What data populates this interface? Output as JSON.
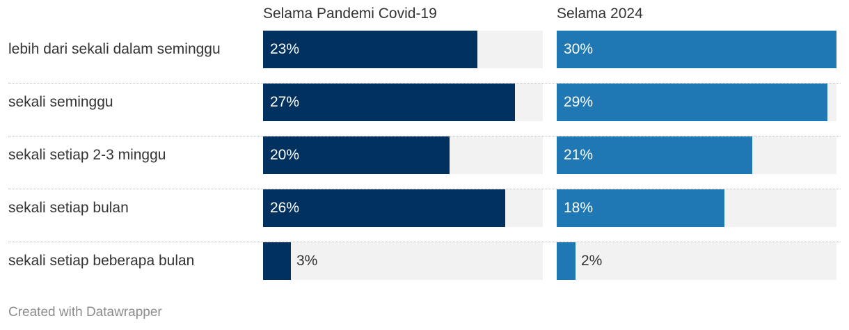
{
  "chart_data": {
    "type": "bar",
    "orientation": "horizontal",
    "categories": [
      "lebih dari sekali dalam seminggu",
      "sekali seminggu",
      "sekali setiap 2-3 minggu",
      "sekali setiap bulan",
      "sekali setiap beberapa bulan"
    ],
    "series": [
      {
        "name": "Selama Pandemi Covid-19",
        "values": [
          23,
          27,
          20,
          26,
          3
        ],
        "labels": [
          "23%",
          "27%",
          "20%",
          "26%",
          "3%"
        ],
        "color": "#01325f"
      },
      {
        "name": "Selama 2024",
        "values": [
          30,
          29,
          21,
          18,
          2
        ],
        "labels": [
          "30%",
          "29%",
          "21%",
          "18%",
          "2%"
        ],
        "color": "#1f78b4"
      }
    ],
    "xlim": [
      0,
      30
    ],
    "track_color": "#f2f2f2",
    "grid": false,
    "legend": "none"
  },
  "footer": {
    "credit": "Created with Datawrapper"
  }
}
